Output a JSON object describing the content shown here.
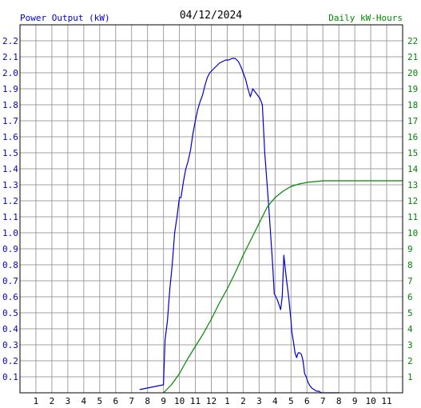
{
  "chart_data": {
    "type": "line",
    "title": "04/12/2024",
    "left_axis_label": "Power Output (kW)",
    "right_axis_label": "Daily kW-Hours",
    "x_tick_labels": [
      "1",
      "2",
      "3",
      "4",
      "5",
      "6",
      "7",
      "8",
      "9",
      "10",
      "11",
      "12",
      "1",
      "2",
      "3",
      "4",
      "5",
      "6",
      "7",
      "8",
      "9",
      "10",
      "11"
    ],
    "x_range_hours": [
      0,
      24
    ],
    "y_left_range": [
      0,
      2.3
    ],
    "y_left_ticks": [
      "0.1",
      "0.2",
      "0.3",
      "0.4",
      "0.5",
      "0.6",
      "0.7",
      "0.8",
      "0.9",
      "1.0",
      "1.1",
      "1.2",
      "1.3",
      "1.4",
      "1.5",
      "1.6",
      "1.7",
      "1.8",
      "1.9",
      "2.0",
      "2.1",
      "2.2"
    ],
    "y_right_range": [
      0,
      23
    ],
    "y_right_ticks": [
      "1",
      "2",
      "3",
      "4",
      "5",
      "6",
      "7",
      "8",
      "9",
      "10",
      "11",
      "12",
      "13",
      "14",
      "15",
      "16",
      "17",
      "18",
      "19",
      "20",
      "21",
      "22"
    ],
    "grid": true,
    "colors": {
      "power": "#0000cc",
      "energy": "#008800",
      "grid": "#a0a0a0",
      "text": "#000000"
    },
    "series": [
      {
        "axis": "left",
        "x": [
          7.5,
          8.0,
          8.5,
          9.0,
          9.1,
          9.25,
          9.4,
          9.55,
          9.7,
          9.85,
          10.0,
          10.1,
          10.25,
          10.4,
          10.55,
          10.7,
          10.85,
          11.0,
          11.15,
          11.3,
          11.45,
          11.6,
          11.75,
          11.9,
          12.1,
          12.3,
          12.5,
          12.7,
          12.9,
          13.1,
          13.3,
          13.5,
          13.7,
          13.85,
          14.0,
          14.15,
          14.3,
          14.45,
          14.6,
          14.75,
          14.9,
          15.05,
          15.2,
          15.35,
          15.5,
          15.65,
          15.75,
          15.85,
          15.95,
          16.05,
          16.15,
          16.25,
          16.35,
          16.45,
          16.55,
          16.7,
          16.85,
          17.0,
          17.05,
          17.15,
          17.25,
          17.35,
          17.45,
          17.55,
          17.65,
          17.75,
          17.85,
          17.95,
          18.05,
          18.15,
          18.3,
          18.45,
          18.6,
          18.75,
          18.9,
          19.05,
          19.2,
          19.4,
          19.6,
          19.8,
          20.0
        ],
        "y": [
          0.02,
          0.03,
          0.04,
          0.05,
          0.33,
          0.45,
          0.65,
          0.8,
          1.0,
          1.1,
          1.22,
          1.22,
          1.32,
          1.4,
          1.45,
          1.52,
          1.62,
          1.7,
          1.77,
          1.82,
          1.86,
          1.92,
          1.97,
          2.0,
          2.02,
          2.04,
          2.06,
          2.07,
          2.08,
          2.08,
          2.09,
          2.09,
          2.07,
          2.04,
          2.0,
          1.96,
          1.9,
          1.85,
          1.9,
          1.88,
          1.86,
          1.84,
          1.8,
          1.5,
          1.3,
          1.1,
          0.95,
          0.8,
          0.62,
          0.6,
          0.58,
          0.55,
          0.52,
          0.6,
          0.86,
          0.72,
          0.6,
          0.45,
          0.38,
          0.32,
          0.25,
          0.22,
          0.25,
          0.25,
          0.24,
          0.2,
          0.12,
          0.1,
          0.07,
          0.05,
          0.03,
          0.02,
          0.01,
          0.01,
          0.0,
          0.0,
          0.0,
          0.0,
          0.0,
          0.0,
          0.0
        ]
      },
      {
        "axis": "right",
        "x": [
          9.0,
          9.5,
          10.0,
          10.5,
          11.0,
          11.5,
          12.0,
          12.5,
          13.0,
          13.5,
          14.0,
          14.5,
          15.0,
          15.5,
          16.0,
          16.5,
          17.0,
          17.5,
          18.0,
          18.5,
          19.0,
          19.5,
          20.0,
          20.5,
          21.0,
          21.5,
          22.0,
          22.5,
          23.0,
          23.5,
          24.0
        ],
        "y": [
          0.0,
          0.5,
          1.2,
          2.1,
          2.9,
          3.7,
          4.6,
          5.6,
          6.5,
          7.5,
          8.6,
          9.6,
          10.6,
          11.6,
          12.2,
          12.6,
          12.9,
          13.05,
          13.15,
          13.2,
          13.25,
          13.25,
          13.25,
          13.25,
          13.25,
          13.25,
          13.25,
          13.25,
          13.25,
          13.25,
          13.25
        ]
      }
    ]
  }
}
